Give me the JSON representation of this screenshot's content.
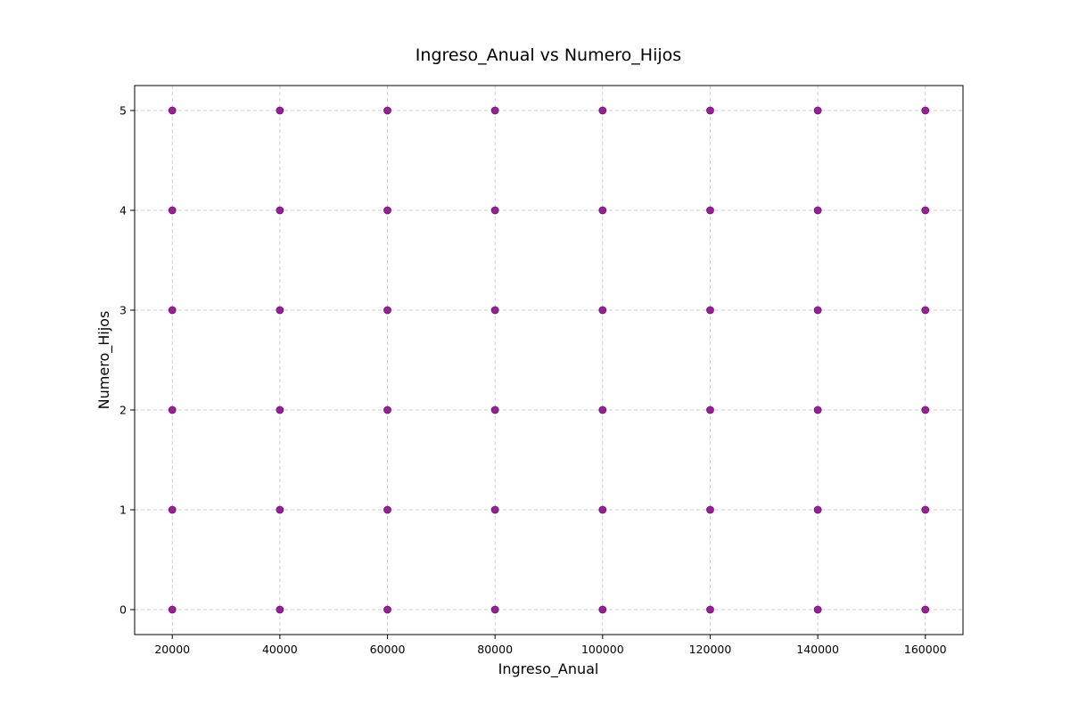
{
  "chart_data": {
    "type": "scatter",
    "title": "Ingreso_Anual vs Numero_Hijos",
    "xlabel": "Ingreso_Anual",
    "ylabel": "Numero_Hijos",
    "xlim": [
      13000,
      167000
    ],
    "ylim": [
      -0.25,
      5.25
    ],
    "x_ticks": [
      20000,
      40000,
      60000,
      80000,
      100000,
      120000,
      140000,
      160000
    ],
    "y_ticks": [
      0,
      1,
      2,
      3,
      4,
      5
    ],
    "grid": true,
    "marker_color": "#800080",
    "points": [
      {
        "x": 20000,
        "y": 0
      },
      {
        "x": 20000,
        "y": 1
      },
      {
        "x": 20000,
        "y": 2
      },
      {
        "x": 20000,
        "y": 3
      },
      {
        "x": 20000,
        "y": 4
      },
      {
        "x": 20000,
        "y": 5
      },
      {
        "x": 40000,
        "y": 0
      },
      {
        "x": 40000,
        "y": 1
      },
      {
        "x": 40000,
        "y": 2
      },
      {
        "x": 40000,
        "y": 3
      },
      {
        "x": 40000,
        "y": 4
      },
      {
        "x": 40000,
        "y": 5
      },
      {
        "x": 60000,
        "y": 0
      },
      {
        "x": 60000,
        "y": 1
      },
      {
        "x": 60000,
        "y": 2
      },
      {
        "x": 60000,
        "y": 3
      },
      {
        "x": 60000,
        "y": 4
      },
      {
        "x": 60000,
        "y": 5
      },
      {
        "x": 80000,
        "y": 0
      },
      {
        "x": 80000,
        "y": 1
      },
      {
        "x": 80000,
        "y": 2
      },
      {
        "x": 80000,
        "y": 3
      },
      {
        "x": 80000,
        "y": 4
      },
      {
        "x": 80000,
        "y": 5
      },
      {
        "x": 100000,
        "y": 0
      },
      {
        "x": 100000,
        "y": 1
      },
      {
        "x": 100000,
        "y": 2
      },
      {
        "x": 100000,
        "y": 3
      },
      {
        "x": 100000,
        "y": 4
      },
      {
        "x": 100000,
        "y": 5
      },
      {
        "x": 120000,
        "y": 0
      },
      {
        "x": 120000,
        "y": 1
      },
      {
        "x": 120000,
        "y": 2
      },
      {
        "x": 120000,
        "y": 3
      },
      {
        "x": 120000,
        "y": 4
      },
      {
        "x": 120000,
        "y": 5
      },
      {
        "x": 140000,
        "y": 0
      },
      {
        "x": 140000,
        "y": 1
      },
      {
        "x": 140000,
        "y": 2
      },
      {
        "x": 140000,
        "y": 3
      },
      {
        "x": 140000,
        "y": 4
      },
      {
        "x": 140000,
        "y": 5
      },
      {
        "x": 160000,
        "y": 0
      },
      {
        "x": 160000,
        "y": 1
      },
      {
        "x": 160000,
        "y": 2
      },
      {
        "x": 160000,
        "y": 3
      },
      {
        "x": 160000,
        "y": 4
      },
      {
        "x": 160000,
        "y": 5
      }
    ]
  }
}
